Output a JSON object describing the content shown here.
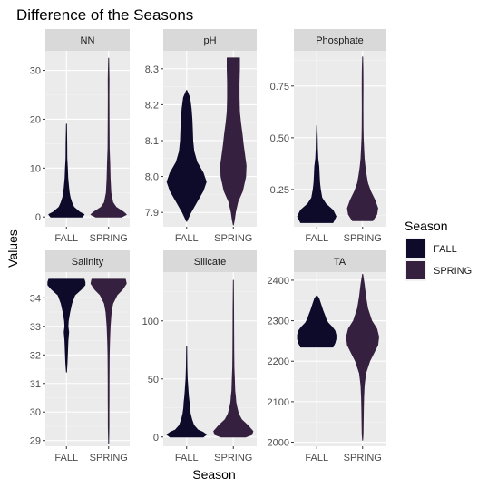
{
  "chart_data": {
    "type": "violin",
    "title": "Difference of the Seasons",
    "xlabel": "Season",
    "ylabel": "Values",
    "categories": [
      "FALL",
      "SPRING"
    ],
    "legend": {
      "title": "Season",
      "placement": "right",
      "entries": [
        {
          "name": "FALL",
          "color": "#0d0a2a"
        },
        {
          "name": "SPRING",
          "color": "#35203f"
        }
      ]
    },
    "panels": [
      {
        "label": "NN",
        "ylim": [
          -2.0,
          34.0
        ],
        "yticks": [
          0,
          10,
          20,
          30
        ],
        "ytick_labels": [
          "0",
          "10",
          "20",
          "30"
        ],
        "groups": [
          {
            "name": "FALL",
            "min": 0.0,
            "max": 19.0,
            "profile": [
              [
                0.0,
                0.85
              ],
              [
                0.5,
                0.95
              ],
              [
                1.0,
                0.7
              ],
              [
                2.0,
                0.4
              ],
              [
                3.0,
                0.28
              ],
              [
                4.0,
                0.2
              ],
              [
                5.0,
                0.15
              ],
              [
                6.0,
                0.12
              ],
              [
                8.0,
                0.07
              ],
              [
                10.0,
                0.05
              ],
              [
                12.0,
                0.02
              ],
              [
                15.0,
                0.015
              ],
              [
                19.0,
                0.0
              ]
            ]
          },
          {
            "name": "SPRING",
            "min": 0.0,
            "max": 32.5,
            "profile": [
              [
                0.0,
                0.7
              ],
              [
                0.5,
                0.95
              ],
              [
                1.0,
                0.8
              ],
              [
                2.0,
                0.4
              ],
              [
                3.0,
                0.22
              ],
              [
                5.0,
                0.12
              ],
              [
                8.0,
                0.08
              ],
              [
                11.0,
                0.06
              ],
              [
                14.0,
                0.03
              ],
              [
                20.0,
                0.02
              ],
              [
                25.0,
                0.015
              ],
              [
                28.0,
                0.02
              ],
              [
                30.0,
                0.01
              ],
              [
                32.5,
                0.0
              ]
            ]
          }
        ]
      },
      {
        "label": "pH",
        "ylim": [
          7.86,
          8.35
        ],
        "yticks": [
          7.9,
          8.0,
          8.1,
          8.2,
          8.3
        ],
        "ytick_labels": [
          "7.9",
          "8.0",
          "8.1",
          "8.2",
          "8.3"
        ],
        "groups": [
          {
            "name": "FALL",
            "min": 7.875,
            "max": 8.24,
            "profile": [
              [
                7.875,
                0.0
              ],
              [
                7.9,
                0.2
              ],
              [
                7.93,
                0.5
              ],
              [
                7.96,
                0.8
              ],
              [
                7.985,
                0.95
              ],
              [
                8.01,
                0.8
              ],
              [
                8.04,
                0.5
              ],
              [
                8.07,
                0.35
              ],
              [
                8.1,
                0.3
              ],
              [
                8.13,
                0.28
              ],
              [
                8.16,
                0.26
              ],
              [
                8.19,
                0.22
              ],
              [
                8.22,
                0.15
              ],
              [
                8.24,
                0.0
              ]
            ]
          },
          {
            "name": "SPRING",
            "min": 7.865,
            "max": 8.33,
            "profile": [
              [
                7.865,
                0.0
              ],
              [
                7.88,
                0.05
              ],
              [
                7.9,
                0.1
              ],
              [
                7.93,
                0.22
              ],
              [
                7.96,
                0.45
              ],
              [
                8.0,
                0.6
              ],
              [
                8.03,
                0.62
              ],
              [
                8.06,
                0.55
              ],
              [
                8.09,
                0.48
              ],
              [
                8.12,
                0.42
              ],
              [
                8.15,
                0.35
              ],
              [
                8.18,
                0.3
              ],
              [
                8.22,
                0.28
              ],
              [
                8.26,
                0.28
              ],
              [
                8.3,
                0.3
              ],
              [
                8.33,
                0.3
              ]
            ]
          }
        ]
      },
      {
        "label": "Phosphate",
        "ylim": [
          0.07,
          0.92
        ],
        "yticks": [
          0.25,
          0.5,
          0.75
        ],
        "ytick_labels": [
          "0.25",
          "0.50",
          "0.75"
        ],
        "groups": [
          {
            "name": "FALL",
            "min": 0.09,
            "max": 0.56,
            "profile": [
              [
                0.09,
                0.8
              ],
              [
                0.12,
                0.95
              ],
              [
                0.15,
                0.8
              ],
              [
                0.18,
                0.45
              ],
              [
                0.21,
                0.25
              ],
              [
                0.25,
                0.18
              ],
              [
                0.28,
                0.14
              ],
              [
                0.32,
                0.12
              ],
              [
                0.36,
                0.1
              ],
              [
                0.4,
                0.05
              ],
              [
                0.45,
                0.03
              ],
              [
                0.5,
                0.02
              ],
              [
                0.56,
                0.0
              ]
            ]
          },
          {
            "name": "SPRING",
            "min": 0.1,
            "max": 0.89,
            "profile": [
              [
                0.1,
                0.5
              ],
              [
                0.13,
                0.7
              ],
              [
                0.16,
                0.75
              ],
              [
                0.2,
                0.6
              ],
              [
                0.24,
                0.4
              ],
              [
                0.28,
                0.25
              ],
              [
                0.32,
                0.18
              ],
              [
                0.36,
                0.12
              ],
              [
                0.4,
                0.08
              ],
              [
                0.45,
                0.05
              ],
              [
                0.5,
                0.03
              ],
              [
                0.55,
                0.02
              ],
              [
                0.65,
                0.015
              ],
              [
                0.75,
                0.02
              ],
              [
                0.82,
                0.015
              ],
              [
                0.89,
                0.0
              ]
            ]
          }
        ]
      },
      {
        "label": "Salinity",
        "ylim": [
          28.8,
          34.9
        ],
        "yticks": [
          29,
          30,
          31,
          32,
          33,
          34
        ],
        "ytick_labels": [
          "29",
          "30",
          "31",
          "32",
          "33",
          "34"
        ],
        "groups": [
          {
            "name": "FALL",
            "min": 31.4,
            "max": 34.65,
            "profile": [
              [
                31.4,
                0.0
              ],
              [
                31.7,
                0.03
              ],
              [
                32.0,
                0.05
              ],
              [
                32.5,
                0.08
              ],
              [
                32.8,
                0.12
              ],
              [
                33.0,
                0.08
              ],
              [
                33.2,
                0.1
              ],
              [
                33.5,
                0.18
              ],
              [
                33.8,
                0.28
              ],
              [
                34.1,
                0.45
              ],
              [
                34.3,
                0.8
              ],
              [
                34.45,
                1.0
              ],
              [
                34.55,
                1.0
              ],
              [
                34.65,
                0.95
              ]
            ]
          },
          {
            "name": "SPRING",
            "min": 28.9,
            "max": 34.65,
            "profile": [
              [
                28.9,
                0.0
              ],
              [
                29.5,
                0.015
              ],
              [
                30.0,
                0.015
              ],
              [
                30.5,
                0.02
              ],
              [
                31.0,
                0.02
              ],
              [
                31.5,
                0.025
              ],
              [
                32.0,
                0.03
              ],
              [
                32.5,
                0.05
              ],
              [
                33.0,
                0.08
              ],
              [
                33.5,
                0.14
              ],
              [
                33.8,
                0.22
              ],
              [
                34.1,
                0.45
              ],
              [
                34.3,
                0.75
              ],
              [
                34.5,
                0.95
              ],
              [
                34.65,
                0.9
              ]
            ]
          }
        ]
      },
      {
        "label": "Silicate",
        "ylim": [
          -8,
          142
        ],
        "yticks": [
          0,
          50,
          100
        ],
        "ytick_labels": [
          "0",
          "50",
          "100"
        ],
        "groups": [
          {
            "name": "FALL",
            "min": 0.0,
            "max": 78.0,
            "profile": [
              [
                0.0,
                0.8
              ],
              [
                2.0,
                0.95
              ],
              [
                4.0,
                0.8
              ],
              [
                6.0,
                0.55
              ],
              [
                10.0,
                0.35
              ],
              [
                15.0,
                0.25
              ],
              [
                20.0,
                0.18
              ],
              [
                25.0,
                0.14
              ],
              [
                30.0,
                0.12
              ],
              [
                35.0,
                0.09
              ],
              [
                40.0,
                0.07
              ],
              [
                45.0,
                0.05
              ],
              [
                50.0,
                0.03
              ],
              [
                55.0,
                0.02
              ],
              [
                60.0,
                0.01
              ],
              [
                78.0,
                0.0
              ]
            ]
          },
          {
            "name": "SPRING",
            "min": 0.0,
            "max": 135.0,
            "profile": [
              [
                0.0,
                0.6
              ],
              [
                2.0,
                0.9
              ],
              [
                5.0,
                0.95
              ],
              [
                10.0,
                0.7
              ],
              [
                15.0,
                0.4
              ],
              [
                20.0,
                0.25
              ],
              [
                25.0,
                0.18
              ],
              [
                30.0,
                0.12
              ],
              [
                35.0,
                0.1
              ],
              [
                40.0,
                0.07
              ],
              [
                50.0,
                0.05
              ],
              [
                60.0,
                0.03
              ],
              [
                75.0,
                0.02
              ],
              [
                90.0,
                0.015
              ],
              [
                110.0,
                0.01
              ],
              [
                135.0,
                0.0
              ]
            ]
          }
        ]
      },
      {
        "label": "TA",
        "ylim": [
          1990,
          2420
        ],
        "yticks": [
          2000,
          2100,
          2200,
          2300,
          2400
        ],
        "ytick_labels": [
          "2000",
          "2100",
          "2200",
          "2300",
          "2400"
        ],
        "groups": [
          {
            "name": "FALL",
            "min": 2235,
            "max": 2362,
            "profile": [
              [
                2235,
                0.8
              ],
              [
                2245,
                0.9
              ],
              [
                2255,
                0.95
              ],
              [
                2265,
                0.95
              ],
              [
                2275,
                0.9
              ],
              [
                2285,
                0.75
              ],
              [
                2295,
                0.55
              ],
              [
                2305,
                0.45
              ],
              [
                2315,
                0.38
              ],
              [
                2325,
                0.3
              ],
              [
                2340,
                0.2
              ],
              [
                2355,
                0.1
              ],
              [
                2362,
                0.0
              ]
            ]
          },
          {
            "name": "SPRING",
            "min": 2005,
            "max": 2415,
            "profile": [
              [
                2005,
                0.0
              ],
              [
                2020,
                0.02
              ],
              [
                2050,
                0.03
              ],
              [
                2080,
                0.04
              ],
              [
                2110,
                0.05
              ],
              [
                2140,
                0.08
              ],
              [
                2170,
                0.15
              ],
              [
                2200,
                0.35
              ],
              [
                2220,
                0.55
              ],
              [
                2240,
                0.75
              ],
              [
                2260,
                0.8
              ],
              [
                2280,
                0.7
              ],
              [
                2300,
                0.45
              ],
              [
                2330,
                0.25
              ],
              [
                2360,
                0.15
              ],
              [
                2390,
                0.08
              ],
              [
                2415,
                0.0
              ]
            ]
          }
        ]
      }
    ]
  }
}
